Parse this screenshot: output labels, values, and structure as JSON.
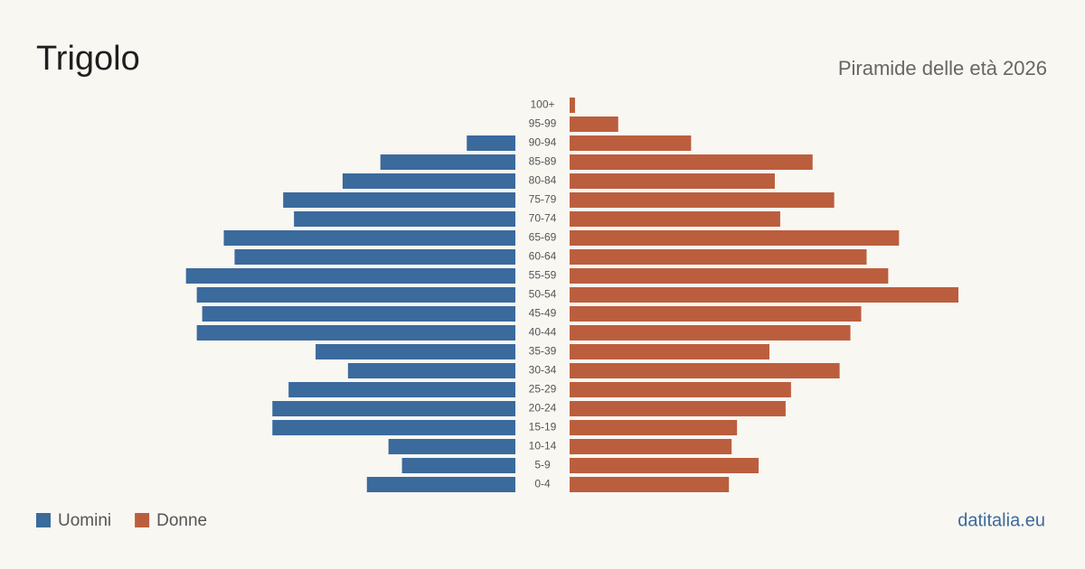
{
  "chart_data": {
    "type": "pyramid",
    "title": "Trigolo",
    "subtitle": "Piramide delle età 2026",
    "source": "datitalia.eu",
    "categories": [
      "100+",
      "95-99",
      "90-94",
      "85-89",
      "80-84",
      "75-79",
      "70-74",
      "65-69",
      "60-64",
      "55-59",
      "50-54",
      "45-49",
      "40-44",
      "35-39",
      "30-34",
      "25-29",
      "20-24",
      "15-19",
      "10-14",
      "5-9",
      "0-4"
    ],
    "series": [
      {
        "name": "Uomini",
        "color": "#3b6a9c",
        "values": [
          0,
          0,
          9,
          25,
          32,
          43,
          41,
          54,
          52,
          61,
          59,
          58,
          59,
          37,
          31,
          42,
          45,
          45,
          23.5,
          21,
          27.5
        ]
      },
      {
        "name": "Donne",
        "color": "#bb5e3e",
        "values": [
          1,
          9,
          22.5,
          45,
          38,
          49,
          39,
          61,
          55,
          59,
          72,
          54,
          52,
          37,
          50,
          41,
          40,
          31,
          30,
          35,
          29.5
        ]
      }
    ]
  }
}
